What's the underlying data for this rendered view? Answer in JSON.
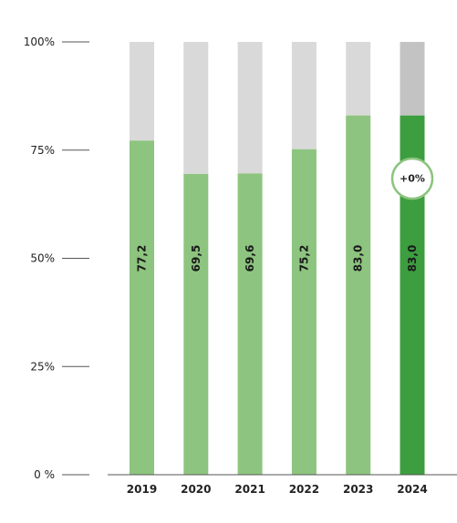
{
  "chart_data": {
    "type": "bar",
    "categories": [
      "2019",
      "2020",
      "2021",
      "2022",
      "2023",
      "2024"
    ],
    "values": [
      77.2,
      69.5,
      69.6,
      75.2,
      83.0,
      83.0
    ],
    "value_labels": [
      "77,2",
      "69,5",
      "69,6",
      "75,2",
      "83,0",
      "83,0"
    ],
    "stacked_to": 100,
    "ylim": [
      0,
      100
    ],
    "y_ticks": [
      {
        "value": 100,
        "label": "100%"
      },
      {
        "value": 75,
        "label": "75%"
      },
      {
        "value": 50,
        "label": "50%"
      },
      {
        "value": 25,
        "label": "25%"
      },
      {
        "value": 0,
        "label": "0 %"
      }
    ],
    "highlight_index": 5,
    "badge": {
      "text": "+0%",
      "category": "2024"
    },
    "title": "",
    "xlabel": "",
    "ylabel": "",
    "grid": false
  },
  "colors": {
    "bar": "#8dc47f",
    "bar_remainder": "#d9d9d9",
    "highlight_bar": "#3d9e3f",
    "highlight_remainder": "#c3c3c3",
    "badge_border": "#8dc47f",
    "axis": "#555555"
  }
}
